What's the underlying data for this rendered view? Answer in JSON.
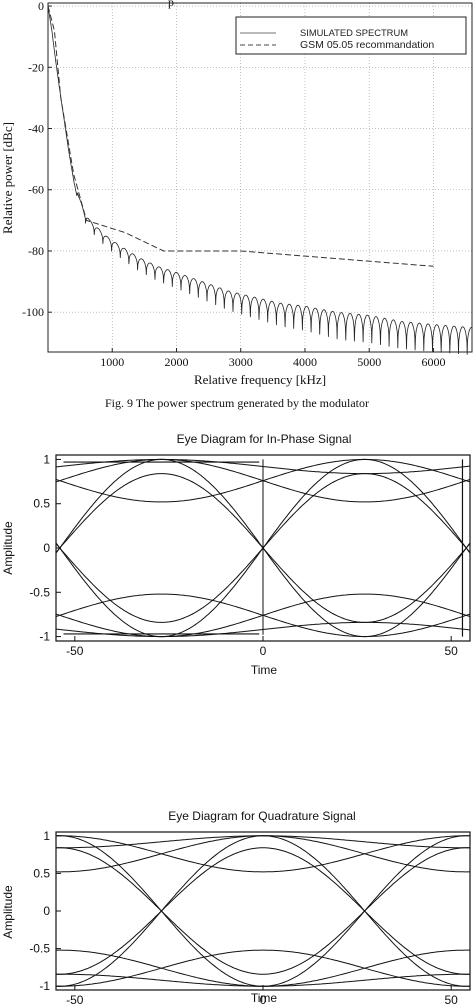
{
  "figure1": {
    "caption": "Fig. 9  The power spectrum generated by the modulator",
    "top_fragment": "p"
  },
  "chart_data": [
    {
      "type": "line",
      "xlabel": "Relative frequency [kHz]",
      "ylabel": "Relative power [dBc]",
      "xlim": [
        0,
        6600
      ],
      "ylim": [
        -113,
        1
      ],
      "x_ticks": [
        1000,
        2000,
        3000,
        4000,
        5000,
        6000
      ],
      "y_ticks": [
        0,
        -20,
        -40,
        -60,
        -80,
        -100
      ],
      "grid": true,
      "legend_position": "top-right",
      "series": [
        {
          "name": "SIMULATED SPECTRUM",
          "style": "solid",
          "points": [
            [
              0,
              0
            ],
            [
              60,
              -8
            ],
            [
              120,
              -18
            ],
            [
              180,
              -27
            ],
            [
              250,
              -37
            ],
            [
              320,
              -47
            ],
            [
              400,
              -57
            ],
            [
              480,
              -65
            ],
            [
              560,
              -70
            ],
            [
              650,
              -73
            ],
            [
              750,
              -75
            ],
            [
              900,
              -78
            ],
            [
              1100,
              -81
            ],
            [
              1400,
              -85
            ],
            [
              1700,
              -88
            ],
            [
              2000,
              -90
            ],
            [
              2400,
              -93
            ],
            [
              2800,
              -96
            ],
            [
              3200,
              -98
            ],
            [
              3600,
              -100
            ],
            [
              4000,
              -101
            ],
            [
              4500,
              -103
            ],
            [
              5000,
              -104
            ],
            [
              5500,
              -106
            ],
            [
              6000,
              -107
            ],
            [
              6600,
              -108
            ]
          ]
        },
        {
          "name": "GSM 05.05 recommandation",
          "style": "dashed",
          "points": [
            [
              0,
              0
            ],
            [
              100,
              -8
            ],
            [
              200,
              -30
            ],
            [
              400,
              -55
            ],
            [
              600,
              -70
            ],
            [
              1200,
              -74
            ],
            [
              1800,
              -80
            ],
            [
              3000,
              -80
            ],
            [
              6000,
              -85
            ]
          ]
        }
      ]
    },
    {
      "type": "line",
      "title": "Eye Diagram for In-Phase Signal",
      "xlabel": "Time",
      "ylabel": "Amplitude",
      "xlim": [
        -55,
        55
      ],
      "ylim": [
        -1.05,
        1.05
      ],
      "x_ticks": [
        -50,
        0,
        50
      ],
      "y_ticks": [
        1,
        0.5,
        0,
        -0.5,
        -1
      ],
      "grid": false
    },
    {
      "type": "line",
      "title": "Eye Diagram for Quadrature Signal",
      "xlabel": "Time",
      "ylabel": "Amplitude",
      "xlim": [
        -55,
        55
      ],
      "ylim": [
        -1.05,
        1.05
      ],
      "x_ticks": [
        -50,
        0,
        50
      ],
      "y_ticks": [
        1,
        0.5,
        0,
        -0.5,
        -1
      ],
      "grid": false
    }
  ]
}
